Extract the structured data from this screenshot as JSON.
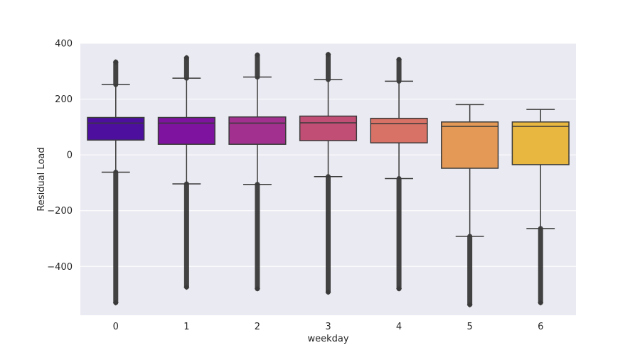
{
  "chart_data": {
    "type": "boxplot",
    "xlabel": "weekday",
    "ylabel": "Residual Load",
    "categories": [
      "0",
      "1",
      "2",
      "3",
      "4",
      "5",
      "6"
    ],
    "ylim": [
      -575,
      400
    ],
    "yticks": [
      -400,
      -200,
      0,
      200,
      400
    ],
    "grid": true,
    "boxes": [
      {
        "category": "0",
        "whisker_low": -62,
        "q1": 53,
        "median": 114,
        "q3": 134,
        "whisker_high": 252,
        "outliers_low": [
          -62,
          -530
        ],
        "outliers_high": [
          252,
          333
        ],
        "color": "#4c0f9e"
      },
      {
        "category": "1",
        "whisker_low": -104,
        "q1": 38,
        "median": 114,
        "q3": 134,
        "whisker_high": 275,
        "outliers_low": [
          -104,
          -474
        ],
        "outliers_high": [
          275,
          348
        ],
        "color": "#7d139e"
      },
      {
        "category": "2",
        "whisker_low": -106,
        "q1": 38,
        "median": 114,
        "q3": 136,
        "whisker_high": 279,
        "outliers_low": [
          -106,
          -480
        ],
        "outliers_high": [
          279,
          358
        ],
        "color": "#a1308e"
      },
      {
        "category": "3",
        "whisker_low": -78,
        "q1": 51,
        "median": 115,
        "q3": 139,
        "whisker_high": 270,
        "outliers_low": [
          -78,
          -492
        ],
        "outliers_high": [
          270,
          360
        ],
        "color": "#c14f75"
      },
      {
        "category": "4",
        "whisker_low": -85,
        "q1": 43,
        "median": 112,
        "q3": 131,
        "whisker_high": 264,
        "outliers_low": [
          -85,
          -480
        ],
        "outliers_high": [
          264,
          342
        ],
        "color": "#d87266"
      },
      {
        "category": "5",
        "whisker_low": -292,
        "q1": -48,
        "median": 102,
        "q3": 118,
        "whisker_high": 180,
        "outliers_low": [
          -292,
          -537
        ],
        "outliers_high": [],
        "color": "#e59956"
      },
      {
        "category": "6",
        "whisker_low": -264,
        "q1": -35,
        "median": 102,
        "q3": 118,
        "whisker_high": 163,
        "outliers_low": [
          -264,
          -530
        ],
        "outliers_high": [],
        "color": "#e8b73f"
      }
    ]
  }
}
